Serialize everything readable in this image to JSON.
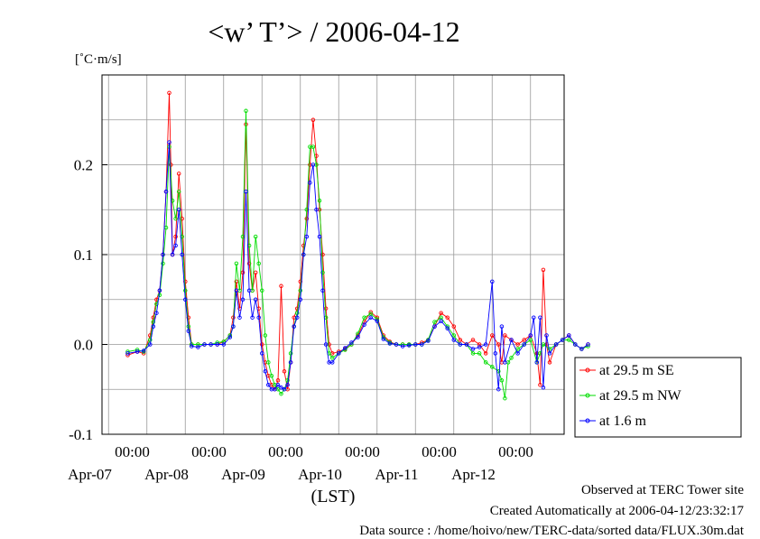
{
  "chart_data": {
    "type": "line",
    "title": "<w’ T’> / 2006-04-12",
    "ylabel": "[˚C·m/s]",
    "xlabel": "(LST)",
    "ylim": [
      -0.1,
      0.3
    ],
    "yticks": [
      -0.1,
      0.0,
      0.1,
      0.2
    ],
    "ytick_labels": [
      "-0.1",
      "0.0",
      "0.1",
      "0.2"
    ],
    "xlim_hours": [
      0,
      144
    ],
    "xtick_labels": [
      {
        "time": "00:00",
        "date": "Apr-07"
      },
      {
        "time": "00:00",
        "date": "Apr-08"
      },
      {
        "time": "00:00",
        "date": "Apr-09"
      },
      {
        "time": "00:00",
        "date": "Apr-10"
      },
      {
        "time": "00:00",
        "date": "Apr-11"
      },
      {
        "time": "00:00",
        "date": "Apr-12"
      }
    ],
    "grid": true,
    "legend_position": "right",
    "series": [
      {
        "name": "at 29.5 m SE",
        "color": "#ff0000",
        "points": [
          [
            0,
            -0.012
          ],
          [
            3,
            -0.008
          ],
          [
            5,
            -0.01
          ],
          [
            7,
            0.01
          ],
          [
            8,
            0.03
          ],
          [
            9,
            0.05
          ],
          [
            10,
            0.06
          ],
          [
            11,
            0.1
          ],
          [
            12,
            0.17
          ],
          [
            13,
            0.28
          ],
          [
            13.5,
            0.2
          ],
          [
            14,
            0.1
          ],
          [
            15,
            0.12
          ],
          [
            16,
            0.19
          ],
          [
            17,
            0.14
          ],
          [
            18,
            0.07
          ],
          [
            19,
            0.03
          ],
          [
            20,
            0.0
          ],
          [
            22,
            0.0
          ],
          [
            24,
            0.0
          ],
          [
            26,
            0.0
          ],
          [
            28,
            0.0
          ],
          [
            30,
            0.003
          ],
          [
            32,
            0.01
          ],
          [
            33,
            0.03
          ],
          [
            34,
            0.07
          ],
          [
            35,
            0.04
          ],
          [
            36,
            0.08
          ],
          [
            37,
            0.245
          ],
          [
            38,
            0.09
          ],
          [
            39,
            0.06
          ],
          [
            40,
            0.08
          ],
          [
            41,
            0.04
          ],
          [
            42,
            0.0
          ],
          [
            43,
            -0.02
          ],
          [
            44,
            -0.035
          ],
          [
            45,
            -0.045
          ],
          [
            46,
            -0.05
          ],
          [
            47,
            -0.04
          ],
          [
            48,
            0.065
          ],
          [
            49,
            -0.03
          ],
          [
            50,
            -0.05
          ],
          [
            51,
            -0.02
          ],
          [
            52,
            0.03
          ],
          [
            53,
            0.04
          ],
          [
            54,
            0.07
          ],
          [
            55,
            0.11
          ],
          [
            56,
            0.14
          ],
          [
            57,
            0.2
          ],
          [
            58,
            0.25
          ],
          [
            59,
            0.21
          ],
          [
            60,
            0.15
          ],
          [
            61,
            0.1
          ],
          [
            62,
            0.04
          ],
          [
            63,
            0.0
          ],
          [
            64,
            -0.01
          ],
          [
            66,
            -0.008
          ],
          [
            68,
            -0.005
          ],
          [
            70,
            0.0
          ],
          [
            72,
            0.01
          ],
          [
            74,
            0.025
          ],
          [
            76,
            0.036
          ],
          [
            78,
            0.03
          ],
          [
            80,
            0.01
          ],
          [
            82,
            0.003
          ],
          [
            84,
            0.0
          ],
          [
            86,
            0.0
          ],
          [
            88,
            0.0
          ],
          [
            90,
            0.0
          ],
          [
            92,
            0.002
          ],
          [
            94,
            0.005
          ],
          [
            96,
            0.02
          ],
          [
            98,
            0.035
          ],
          [
            100,
            0.03
          ],
          [
            102,
            0.02
          ],
          [
            104,
            0.005
          ],
          [
            106,
            0.0
          ],
          [
            108,
            0.005
          ],
          [
            110,
            0.0
          ],
          [
            112,
            -0.01
          ],
          [
            114,
            0.01
          ],
          [
            116,
            0.0
          ],
          [
            117,
            -0.02
          ],
          [
            118,
            0.01
          ],
          [
            120,
            0.005
          ],
          [
            122,
            0.0
          ],
          [
            124,
            0.005
          ],
          [
            126,
            0.01
          ],
          [
            128,
            -0.01
          ],
          [
            129,
            -0.045
          ],
          [
            130,
            0.083
          ],
          [
            131,
            0.0
          ],
          [
            132,
            -0.02
          ],
          [
            134,
            0.0
          ],
          [
            136,
            0.005
          ],
          [
            138,
            0.01
          ],
          [
            140,
            0.0
          ],
          [
            142,
            -0.005
          ],
          [
            144,
            0.0
          ]
        ]
      },
      {
        "name": "at 29.5 m NW",
        "color": "#00dd00",
        "points": [
          [
            0,
            -0.008
          ],
          [
            3,
            -0.006
          ],
          [
            5,
            -0.008
          ],
          [
            7,
            0.005
          ],
          [
            8,
            0.025
          ],
          [
            9,
            0.045
          ],
          [
            10,
            0.055
          ],
          [
            11,
            0.09
          ],
          [
            12,
            0.13
          ],
          [
            13,
            0.22
          ],
          [
            14,
            0.16
          ],
          [
            15,
            0.14
          ],
          [
            16,
            0.17
          ],
          [
            17,
            0.12
          ],
          [
            18,
            0.06
          ],
          [
            19,
            0.02
          ],
          [
            20,
            0.0
          ],
          [
            22,
            0.0
          ],
          [
            24,
            0.0
          ],
          [
            26,
            0.0
          ],
          [
            28,
            0.002
          ],
          [
            30,
            0.003
          ],
          [
            32,
            0.01
          ],
          [
            33,
            0.02
          ],
          [
            34,
            0.09
          ],
          [
            35,
            0.06
          ],
          [
            36,
            0.12
          ],
          [
            37,
            0.26
          ],
          [
            38,
            0.11
          ],
          [
            39,
            0.06
          ],
          [
            40,
            0.12
          ],
          [
            41,
            0.09
          ],
          [
            42,
            0.06
          ],
          [
            43,
            0.01
          ],
          [
            44,
            -0.02
          ],
          [
            45,
            -0.035
          ],
          [
            46,
            -0.045
          ],
          [
            47,
            -0.05
          ],
          [
            48,
            -0.055
          ],
          [
            49,
            -0.05
          ],
          [
            50,
            -0.04
          ],
          [
            51,
            -0.01
          ],
          [
            52,
            0.02
          ],
          [
            53,
            0.035
          ],
          [
            54,
            0.06
          ],
          [
            55,
            0.1
          ],
          [
            56,
            0.15
          ],
          [
            57,
            0.22
          ],
          [
            58,
            0.22
          ],
          [
            59,
            0.2
          ],
          [
            60,
            0.16
          ],
          [
            61,
            0.08
          ],
          [
            62,
            0.03
          ],
          [
            63,
            -0.01
          ],
          [
            64,
            -0.015
          ],
          [
            66,
            -0.01
          ],
          [
            68,
            -0.006
          ],
          [
            70,
            0.0
          ],
          [
            72,
            0.012
          ],
          [
            74,
            0.03
          ],
          [
            76,
            0.034
          ],
          [
            78,
            0.028
          ],
          [
            80,
            0.008
          ],
          [
            82,
            0.002
          ],
          [
            84,
            0.0
          ],
          [
            86,
            0.0
          ],
          [
            88,
            0.0
          ],
          [
            90,
            0.0
          ],
          [
            92,
            0.0
          ],
          [
            94,
            0.005
          ],
          [
            96,
            0.025
          ],
          [
            98,
            0.03
          ],
          [
            100,
            0.02
          ],
          [
            102,
            0.01
          ],
          [
            104,
            0.0
          ],
          [
            106,
            0.0
          ],
          [
            108,
            -0.01
          ],
          [
            110,
            -0.01
          ],
          [
            112,
            -0.02
          ],
          [
            114,
            -0.025
          ],
          [
            116,
            -0.03
          ],
          [
            117,
            -0.04
          ],
          [
            118,
            -0.06
          ],
          [
            119,
            -0.02
          ],
          [
            120,
            -0.015
          ],
          [
            122,
            -0.005
          ],
          [
            124,
            0.0
          ],
          [
            126,
            0.005
          ],
          [
            128,
            -0.02
          ],
          [
            129,
            -0.01
          ],
          [
            130,
            0.0
          ],
          [
            132,
            -0.005
          ],
          [
            134,
            0.0
          ],
          [
            136,
            0.005
          ],
          [
            138,
            0.005
          ],
          [
            140,
            0.0
          ],
          [
            142,
            -0.005
          ],
          [
            144,
            -0.002
          ]
        ]
      },
      {
        "name": "at 1.6 m",
        "color": "#0000ff",
        "points": [
          [
            0,
            -0.01
          ],
          [
            3,
            -0.008
          ],
          [
            5,
            -0.007
          ],
          [
            7,
            0.0
          ],
          [
            8,
            0.02
          ],
          [
            9,
            0.035
          ],
          [
            10,
            0.06
          ],
          [
            11,
            0.1
          ],
          [
            12,
            0.17
          ],
          [
            13,
            0.225
          ],
          [
            14,
            0.1
          ],
          [
            15,
            0.11
          ],
          [
            16,
            0.15
          ],
          [
            17,
            0.1
          ],
          [
            18,
            0.05
          ],
          [
            19,
            0.015
          ],
          [
            20,
            -0.002
          ],
          [
            22,
            -0.003
          ],
          [
            24,
            0.0
          ],
          [
            26,
            0.0
          ],
          [
            28,
            0.0
          ],
          [
            30,
            0.0
          ],
          [
            32,
            0.008
          ],
          [
            33,
            0.02
          ],
          [
            34,
            0.06
          ],
          [
            35,
            0.03
          ],
          [
            36,
            0.05
          ],
          [
            37,
            0.17
          ],
          [
            38,
            0.06
          ],
          [
            39,
            0.03
          ],
          [
            40,
            0.05
          ],
          [
            41,
            0.03
          ],
          [
            42,
            -0.01
          ],
          [
            43,
            -0.03
          ],
          [
            44,
            -0.045
          ],
          [
            45,
            -0.05
          ],
          [
            46,
            -0.05
          ],
          [
            47,
            -0.045
          ],
          [
            48,
            -0.048
          ],
          [
            49,
            -0.05
          ],
          [
            50,
            -0.045
          ],
          [
            51,
            -0.02
          ],
          [
            52,
            0.02
          ],
          [
            53,
            0.03
          ],
          [
            54,
            0.05
          ],
          [
            55,
            0.1
          ],
          [
            56,
            0.12
          ],
          [
            57,
            0.18
          ],
          [
            58,
            0.2
          ],
          [
            59,
            0.15
          ],
          [
            60,
            0.12
          ],
          [
            61,
            0.06
          ],
          [
            62,
            0.0
          ],
          [
            63,
            -0.02
          ],
          [
            64,
            -0.02
          ],
          [
            66,
            -0.01
          ],
          [
            68,
            -0.004
          ],
          [
            70,
            0.002
          ],
          [
            72,
            0.008
          ],
          [
            74,
            0.022
          ],
          [
            76,
            0.03
          ],
          [
            78,
            0.026
          ],
          [
            80,
            0.006
          ],
          [
            82,
            0.001
          ],
          [
            84,
            0.0
          ],
          [
            86,
            -0.002
          ],
          [
            88,
            -0.001
          ],
          [
            90,
            0.0
          ],
          [
            92,
            0.0
          ],
          [
            94,
            0.004
          ],
          [
            96,
            0.02
          ],
          [
            98,
            0.026
          ],
          [
            100,
            0.018
          ],
          [
            102,
            0.005
          ],
          [
            104,
            0.0
          ],
          [
            106,
            0.0
          ],
          [
            108,
            -0.005
          ],
          [
            110,
            -0.003
          ],
          [
            112,
            0.0
          ],
          [
            114,
            0.07
          ],
          [
            115,
            -0.01
          ],
          [
            116,
            -0.05
          ],
          [
            117,
            0.02
          ],
          [
            118,
            -0.02
          ],
          [
            120,
            0.005
          ],
          [
            122,
            -0.01
          ],
          [
            124,
            0.0
          ],
          [
            126,
            0.01
          ],
          [
            127,
            0.03
          ],
          [
            128,
            -0.02
          ],
          [
            129,
            0.03
          ],
          [
            130,
            -0.048
          ],
          [
            131,
            0.01
          ],
          [
            132,
            -0.01
          ],
          [
            134,
            0.0
          ],
          [
            136,
            0.005
          ],
          [
            138,
            0.01
          ],
          [
            140,
            0.0
          ],
          [
            142,
            -0.005
          ],
          [
            144,
            0.0
          ]
        ]
      }
    ]
  },
  "footer": {
    "site": "Observed at TERC Tower site",
    "created": "Created Automatically at 2006-04-12/23:32:17",
    "source": "Data source : /home/hoivo/new/TERC-data/sorted  data/FLUX.30m.dat"
  }
}
